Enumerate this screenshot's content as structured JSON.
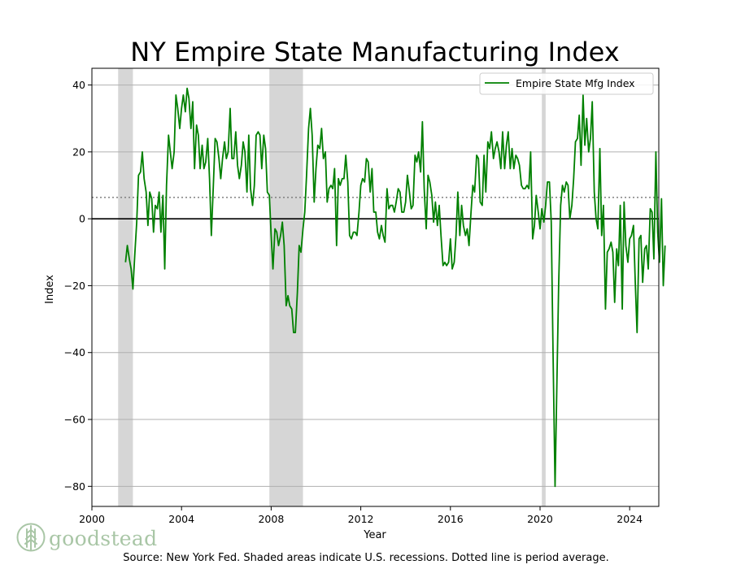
{
  "chart_data": {
    "type": "line",
    "title": "NY Empire State Manufacturing Index",
    "xlabel": "Year",
    "ylabel": "Index",
    "xlim": [
      2000,
      2025.3
    ],
    "ylim": [
      -86,
      45
    ],
    "x_ticks": [
      2000,
      2004,
      2008,
      2012,
      2016,
      2020,
      2024
    ],
    "y_ticks": [
      40,
      20,
      0,
      -20,
      -40,
      -60,
      -80
    ],
    "grid": "horizontal",
    "legend": "top-right",
    "average_line": 6.4,
    "zero_line": 0,
    "recessions": [
      [
        2001.17,
        2001.83
      ],
      [
        2007.92,
        2009.42
      ],
      [
        2020.08,
        2020.25
      ]
    ],
    "colors": {
      "series": "#008000",
      "recession": "#d6d6d6",
      "grid": "#b0b0b0",
      "average": "#808080"
    },
    "series": [
      {
        "name": "Empire State Mfg Index",
        "points": [
          [
            2001.5,
            -13
          ],
          [
            2001.58,
            -8
          ],
          [
            2001.67,
            -12
          ],
          [
            2001.75,
            -15
          ],
          [
            2001.83,
            -21
          ],
          [
            2001.92,
            -10
          ],
          [
            2002.0,
            -1
          ],
          [
            2002.08,
            13
          ],
          [
            2002.17,
            14
          ],
          [
            2002.25,
            20
          ],
          [
            2002.33,
            12
          ],
          [
            2002.42,
            8
          ],
          [
            2002.5,
            -2
          ],
          [
            2002.58,
            8
          ],
          [
            2002.67,
            6
          ],
          [
            2002.75,
            -4
          ],
          [
            2002.83,
            4
          ],
          [
            2002.92,
            3
          ],
          [
            2003.0,
            8
          ],
          [
            2003.08,
            -4
          ],
          [
            2003.17,
            7
          ],
          [
            2003.25,
            -15
          ],
          [
            2003.33,
            10
          ],
          [
            2003.42,
            25
          ],
          [
            2003.5,
            20
          ],
          [
            2003.58,
            15
          ],
          [
            2003.67,
            20
          ],
          [
            2003.75,
            37
          ],
          [
            2003.83,
            33
          ],
          [
            2003.92,
            27
          ],
          [
            2004.0,
            33
          ],
          [
            2004.08,
            37
          ],
          [
            2004.17,
            32
          ],
          [
            2004.25,
            39
          ],
          [
            2004.33,
            36
          ],
          [
            2004.42,
            27
          ],
          [
            2004.5,
            35
          ],
          [
            2004.58,
            15
          ],
          [
            2004.67,
            28
          ],
          [
            2004.75,
            25
          ],
          [
            2004.83,
            15
          ],
          [
            2004.92,
            22
          ],
          [
            2005.0,
            15
          ],
          [
            2005.08,
            17
          ],
          [
            2005.17,
            24
          ],
          [
            2005.25,
            12
          ],
          [
            2005.33,
            -5
          ],
          [
            2005.42,
            10
          ],
          [
            2005.5,
            24
          ],
          [
            2005.58,
            23
          ],
          [
            2005.67,
            18
          ],
          [
            2005.75,
            12
          ],
          [
            2005.83,
            18
          ],
          [
            2005.92,
            23
          ],
          [
            2006.0,
            18
          ],
          [
            2006.08,
            20
          ],
          [
            2006.17,
            33
          ],
          [
            2006.25,
            18
          ],
          [
            2006.33,
            18
          ],
          [
            2006.42,
            26
          ],
          [
            2006.5,
            16
          ],
          [
            2006.58,
            12
          ],
          [
            2006.67,
            16
          ],
          [
            2006.75,
            23
          ],
          [
            2006.83,
            20
          ],
          [
            2006.92,
            8
          ],
          [
            2007.0,
            25
          ],
          [
            2007.08,
            9
          ],
          [
            2007.17,
            4
          ],
          [
            2007.25,
            10
          ],
          [
            2007.33,
            25
          ],
          [
            2007.42,
            26
          ],
          [
            2007.5,
            25
          ],
          [
            2007.58,
            15
          ],
          [
            2007.67,
            25
          ],
          [
            2007.75,
            21
          ],
          [
            2007.83,
            8
          ],
          [
            2007.92,
            7
          ],
          [
            2008.0,
            -5
          ],
          [
            2008.08,
            -15
          ],
          [
            2008.17,
            -3
          ],
          [
            2008.25,
            -4
          ],
          [
            2008.33,
            -8
          ],
          [
            2008.42,
            -5
          ],
          [
            2008.5,
            -1
          ],
          [
            2008.58,
            -8
          ],
          [
            2008.67,
            -26
          ],
          [
            2008.75,
            -23
          ],
          [
            2008.83,
            -26
          ],
          [
            2008.92,
            -27
          ],
          [
            2009.0,
            -34
          ],
          [
            2009.08,
            -34
          ],
          [
            2009.17,
            -22
          ],
          [
            2009.25,
            -8
          ],
          [
            2009.33,
            -10
          ],
          [
            2009.42,
            -3
          ],
          [
            2009.5,
            2
          ],
          [
            2009.58,
            13
          ],
          [
            2009.67,
            27
          ],
          [
            2009.75,
            33
          ],
          [
            2009.83,
            25
          ],
          [
            2009.92,
            5
          ],
          [
            2010.0,
            15
          ],
          [
            2010.08,
            22
          ],
          [
            2010.17,
            21
          ],
          [
            2010.25,
            27
          ],
          [
            2010.33,
            18
          ],
          [
            2010.42,
            20
          ],
          [
            2010.5,
            5
          ],
          [
            2010.58,
            9
          ],
          [
            2010.67,
            10
          ],
          [
            2010.75,
            9
          ],
          [
            2010.83,
            15
          ],
          [
            2010.92,
            -8
          ],
          [
            2011.0,
            12
          ],
          [
            2011.08,
            10
          ],
          [
            2011.17,
            12
          ],
          [
            2011.25,
            12
          ],
          [
            2011.33,
            19
          ],
          [
            2011.42,
            11
          ],
          [
            2011.5,
            -5
          ],
          [
            2011.58,
            -6
          ],
          [
            2011.67,
            -4
          ],
          [
            2011.75,
            -4
          ],
          [
            2011.83,
            -5
          ],
          [
            2011.92,
            2
          ],
          [
            2012.0,
            10
          ],
          [
            2012.08,
            12
          ],
          [
            2012.17,
            11
          ],
          [
            2012.25,
            18
          ],
          [
            2012.33,
            17
          ],
          [
            2012.42,
            8
          ],
          [
            2012.5,
            15
          ],
          [
            2012.58,
            2
          ],
          [
            2012.67,
            2
          ],
          [
            2012.75,
            -4
          ],
          [
            2012.83,
            -6
          ],
          [
            2012.92,
            -2
          ],
          [
            2013.0,
            -5
          ],
          [
            2013.08,
            -7
          ],
          [
            2013.17,
            9
          ],
          [
            2013.25,
            3
          ],
          [
            2013.33,
            4
          ],
          [
            2013.42,
            4
          ],
          [
            2013.5,
            2
          ],
          [
            2013.58,
            5
          ],
          [
            2013.67,
            9
          ],
          [
            2013.75,
            8
          ],
          [
            2013.83,
            2
          ],
          [
            2013.92,
            2
          ],
          [
            2014.0,
            5
          ],
          [
            2014.08,
            13
          ],
          [
            2014.17,
            8
          ],
          [
            2014.25,
            3
          ],
          [
            2014.33,
            4
          ],
          [
            2014.42,
            19
          ],
          [
            2014.5,
            17
          ],
          [
            2014.58,
            20
          ],
          [
            2014.67,
            14
          ],
          [
            2014.75,
            29
          ],
          [
            2014.83,
            9
          ],
          [
            2014.92,
            -3
          ],
          [
            2015.0,
            13
          ],
          [
            2015.08,
            11
          ],
          [
            2015.17,
            7
          ],
          [
            2015.25,
            -1
          ],
          [
            2015.33,
            5
          ],
          [
            2015.42,
            -2
          ],
          [
            2015.5,
            4
          ],
          [
            2015.58,
            -5
          ],
          [
            2015.67,
            -14
          ],
          [
            2015.75,
            -13
          ],
          [
            2015.83,
            -14
          ],
          [
            2015.92,
            -13
          ],
          [
            2016.0,
            -6
          ],
          [
            2016.08,
            -15
          ],
          [
            2016.17,
            -13
          ],
          [
            2016.25,
            -5
          ],
          [
            2016.33,
            8
          ],
          [
            2016.42,
            -5
          ],
          [
            2016.5,
            4
          ],
          [
            2016.58,
            -2
          ],
          [
            2016.67,
            -5
          ],
          [
            2016.75,
            -3
          ],
          [
            2016.83,
            -8
          ],
          [
            2016.92,
            2
          ],
          [
            2017.0,
            10
          ],
          [
            2017.08,
            8
          ],
          [
            2017.17,
            19
          ],
          [
            2017.25,
            18
          ],
          [
            2017.33,
            5
          ],
          [
            2017.42,
            4
          ],
          [
            2017.5,
            19
          ],
          [
            2017.58,
            8
          ],
          [
            2017.67,
            23
          ],
          [
            2017.75,
            21
          ],
          [
            2017.83,
            26
          ],
          [
            2017.92,
            18
          ],
          [
            2018.0,
            21
          ],
          [
            2018.08,
            23
          ],
          [
            2018.17,
            20
          ],
          [
            2018.25,
            15
          ],
          [
            2018.33,
            26
          ],
          [
            2018.42,
            15
          ],
          [
            2018.5,
            22
          ],
          [
            2018.58,
            26
          ],
          [
            2018.67,
            15
          ],
          [
            2018.75,
            21
          ],
          [
            2018.83,
            15
          ],
          [
            2018.92,
            19
          ],
          [
            2019.0,
            18
          ],
          [
            2019.08,
            16
          ],
          [
            2019.17,
            10
          ],
          [
            2019.25,
            9
          ],
          [
            2019.33,
            9
          ],
          [
            2019.42,
            10
          ],
          [
            2019.5,
            9
          ],
          [
            2019.58,
            20
          ],
          [
            2019.67,
            -6
          ],
          [
            2019.75,
            -2
          ],
          [
            2019.83,
            7
          ],
          [
            2019.92,
            2
          ],
          [
            2020.0,
            -3
          ],
          [
            2020.08,
            3
          ],
          [
            2020.17,
            -1
          ],
          [
            2020.25,
            4
          ],
          [
            2020.33,
            11
          ],
          [
            2020.42,
            11
          ],
          [
            2020.5,
            -1
          ],
          [
            2020.58,
            -40
          ],
          [
            2020.67,
            -80
          ],
          [
            2020.75,
            -50
          ],
          [
            2020.83,
            -20
          ],
          [
            2020.92,
            4
          ],
          [
            2021.0,
            10
          ],
          [
            2021.08,
            8
          ],
          [
            2021.17,
            11
          ],
          [
            2021.25,
            10
          ],
          [
            2021.33,
            0
          ],
          [
            2021.42,
            4
          ],
          [
            2021.5,
            12
          ],
          [
            2021.58,
            23
          ],
          [
            2021.67,
            24
          ],
          [
            2021.75,
            31
          ],
          [
            2021.83,
            16
          ],
          [
            2021.92,
            37
          ],
          [
            2022.0,
            22
          ],
          [
            2022.08,
            30
          ],
          [
            2022.17,
            20
          ],
          [
            2022.25,
            24
          ],
          [
            2022.33,
            35
          ],
          [
            2022.42,
            8
          ],
          [
            2022.5,
            0
          ],
          [
            2022.58,
            -3
          ],
          [
            2022.67,
            21
          ],
          [
            2022.75,
            -5
          ],
          [
            2022.83,
            4
          ],
          [
            2022.92,
            -27
          ],
          [
            2023.0,
            -10
          ],
          [
            2023.08,
            -9
          ],
          [
            2023.17,
            -7
          ],
          [
            2023.25,
            -10
          ],
          [
            2023.33,
            -25
          ],
          [
            2023.42,
            -9
          ],
          [
            2023.5,
            -14
          ],
          [
            2023.58,
            4
          ],
          [
            2023.67,
            -27
          ],
          [
            2023.75,
            5
          ],
          [
            2023.83,
            -8
          ],
          [
            2023.92,
            -13
          ],
          [
            2024.0,
            -6
          ],
          [
            2024.08,
            -5
          ],
          [
            2024.17,
            -2
          ],
          [
            2024.25,
            -19
          ],
          [
            2024.33,
            -34
          ],
          [
            2024.42,
            -6
          ],
          [
            2024.5,
            -5
          ],
          [
            2024.58,
            -19
          ],
          [
            2024.67,
            -9
          ],
          [
            2024.75,
            -8
          ],
          [
            2024.83,
            -15
          ],
          [
            2024.92,
            3
          ],
          [
            2025.0,
            2
          ],
          [
            2025.08,
            -12
          ],
          [
            2025.17,
            20
          ],
          [
            2025.25,
            -4
          ],
          [
            2025.33,
            -13
          ],
          [
            2025.42,
            6
          ],
          [
            2025.5,
            -20
          ],
          [
            2025.58,
            -8
          ]
        ]
      }
    ]
  },
  "source_text": "Source: New York Fed. Shaded areas indicate U.S. recessions. Dotted line is period average.",
  "logo": {
    "text": "goodstead",
    "icon": "tree-icon"
  }
}
